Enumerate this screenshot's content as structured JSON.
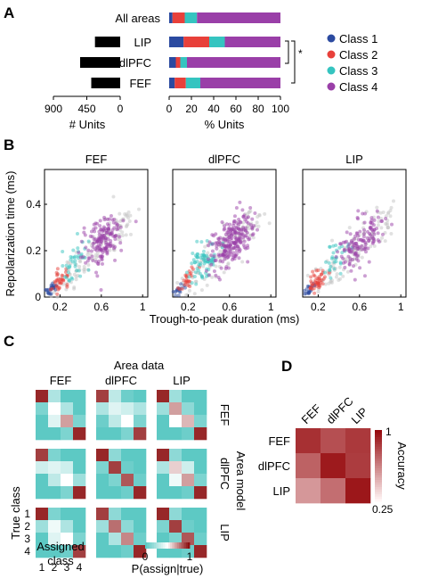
{
  "panels": {
    "A": "A",
    "B": "B",
    "C": "C",
    "D": "D"
  },
  "colors": {
    "class1": "#2b4aa0",
    "class2": "#e8403a",
    "class3": "#35c4c0",
    "class4": "#9a3fa8",
    "gray": "#c8c8c8",
    "diag": "#8b0f10"
  },
  "legend": [
    "Class 1",
    "Class 2",
    "Class 3",
    "Class 4"
  ],
  "significance": "*",
  "chart_data": [
    {
      "id": "A-units",
      "type": "bar",
      "orientation": "horizontal",
      "categories": [
        "LIP",
        "dlPFC",
        "FEF"
      ],
      "values": [
        340,
        540,
        390
      ],
      "xlabel": "# Units",
      "ticks": [
        "900",
        "450",
        "0"
      ],
      "xlim": [
        0,
        900
      ],
      "reversed": true
    },
    {
      "id": "A-percent",
      "type": "bar",
      "stacked": true,
      "orientation": "horizontal",
      "categories": [
        "All areas",
        "LIP",
        "dlPFC",
        "FEF"
      ],
      "series": [
        {
          "name": "Class 1",
          "values": [
            3,
            13,
            6,
            5
          ]
        },
        {
          "name": "Class 2",
          "values": [
            11,
            23,
            4,
            10
          ]
        },
        {
          "name": "Class 3",
          "values": [
            11,
            14,
            6,
            13
          ]
        },
        {
          "name": "Class 4",
          "values": [
            75,
            50,
            84,
            72
          ]
        }
      ],
      "xlabel": "% Units",
      "ticks": [
        "0",
        "20",
        "40",
        "60",
        "80",
        "100"
      ],
      "xlim": [
        0,
        100
      ]
    },
    {
      "id": "B",
      "type": "scatter",
      "titles": [
        "FEF",
        "dlPFC",
        "LIP"
      ],
      "xlabel": "Trough-to-peak duration (ms)",
      "ylabel": "Repolarization time (ms)",
      "xticks": [
        "0.2",
        "0.6",
        "1"
      ],
      "yticks": [
        "0",
        "0.2",
        "0.4"
      ],
      "xlim": [
        0.05,
        1.05
      ],
      "ylim": [
        0,
        0.55
      ],
      "clusters": [
        {
          "name": "Class 1",
          "cx": 0.12,
          "cy": 0.035,
          "sx": 0.03,
          "sy": 0.012
        },
        {
          "name": "Class 2",
          "cx": 0.2,
          "cy": 0.075,
          "sx": 0.04,
          "sy": 0.022
        },
        {
          "name": "Class 3",
          "cx": 0.35,
          "cy": 0.16,
          "sx": 0.07,
          "sy": 0.035
        },
        {
          "name": "Class 4",
          "cx": 0.62,
          "cy": 0.24,
          "sx": 0.1,
          "sy": 0.05
        }
      ]
    },
    {
      "id": "C",
      "type": "heatmap",
      "top_title": "Area data",
      "col_titles": [
        "FEF",
        "dlPFC",
        "LIP"
      ],
      "side_title": "Area model",
      "row_titles": [
        "FEF",
        "dlPFC",
        "LIP"
      ],
      "ylabel": "True class",
      "xlabel_lines": [
        "Assigned",
        "class"
      ],
      "class_ticks": [
        "1",
        "2",
        "3",
        "4"
      ],
      "colorbar_ticks": [
        "0",
        "1"
      ],
      "colorbar_label": "P(assign|true)",
      "matrices": [
        [
          [
            [
              0.95,
              0.25,
              0,
              0
            ],
            [
              0.1,
              0.5,
              0.25,
              0
            ],
            [
              0,
              0.4,
              0.7,
              0.1
            ],
            [
              0,
              0,
              0.1,
              0.95
            ]
          ],
          [
            [
              0.9,
              0.3,
              0.05,
              0
            ],
            [
              0.25,
              0.4,
              0.35,
              0.25
            ],
            [
              0.05,
              0.3,
              0.5,
              0.1
            ],
            [
              0,
              0,
              0.1,
              0.9
            ]
          ],
          [
            [
              0.95,
              0.2,
              0,
              0
            ],
            [
              0.2,
              0.7,
              0.15,
              0
            ],
            [
              0,
              0.5,
              0.65,
              0.1
            ],
            [
              0,
              0,
              0.05,
              0.95
            ]
          ]
        ],
        [
          [
            [
              0.9,
              0.1,
              0,
              0
            ],
            [
              0.35,
              0.4,
              0.35,
              0
            ],
            [
              0,
              0.3,
              0.5,
              0.2
            ],
            [
              0,
              0,
              0.1,
              0.95
            ]
          ],
          [
            [
              0.95,
              0.15,
              0,
              0
            ],
            [
              0.1,
              0.9,
              0.05,
              0
            ],
            [
              0,
              0.1,
              0.85,
              0.05
            ],
            [
              0,
              0,
              0.05,
              0.95
            ]
          ],
          [
            [
              0.95,
              0.15,
              0,
              0
            ],
            [
              0.25,
              0.6,
              0.35,
              0
            ],
            [
              0,
              0.45,
              0.7,
              0.1
            ],
            [
              0,
              0,
              0.05,
              0.95
            ]
          ]
        ],
        [
          [
            [
              0.95,
              0.1,
              0,
              0
            ],
            [
              0.2,
              0.45,
              0.25,
              0
            ],
            [
              0,
              0.4,
              0.5,
              0.1
            ],
            [
              0,
              0,
              0.05,
              0.9
            ]
          ],
          [
            [
              0.9,
              0.15,
              0,
              0
            ],
            [
              0.2,
              0.8,
              0.15,
              0
            ],
            [
              0,
              0.25,
              0.75,
              0.05
            ],
            [
              0,
              0,
              0.05,
              0.95
            ]
          ],
          [
            [
              0.95,
              0.15,
              0,
              0
            ],
            [
              0.1,
              0.9,
              0.05,
              0
            ],
            [
              0,
              0.1,
              0.85,
              0.05
            ],
            [
              0,
              0,
              0.05,
              0.95
            ]
          ]
        ]
      ]
    },
    {
      "id": "D",
      "type": "heatmap",
      "rows": [
        "FEF",
        "dlPFC",
        "LIP"
      ],
      "cols": [
        "FEF",
        "dlPFC",
        "LIP"
      ],
      "values": [
        [
          0.88,
          0.78,
          0.85
        ],
        [
          0.72,
          0.95,
          0.84
        ],
        [
          0.55,
          0.68,
          0.96
        ]
      ],
      "colorbar_ticks": [
        "1",
        "0.25"
      ],
      "colorbar_label": "Accuracy",
      "range": [
        0.25,
        1
      ]
    }
  ]
}
